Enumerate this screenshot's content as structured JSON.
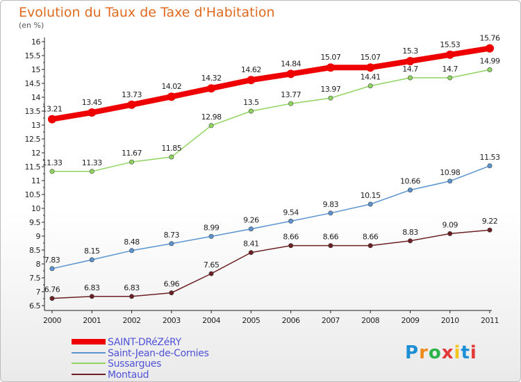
{
  "title": "Evolution du Taux de Taxe d'Habitation",
  "subtitle": "(en %)",
  "logo": {
    "text": "Proxiti",
    "letters": [
      "P",
      "r",
      "o",
      "x",
      "i",
      "t",
      "i"
    ],
    "colors": [
      "#1e8fd6",
      "#f08a1c",
      "#2bb34a",
      "#e23a3a",
      "#f3c51b",
      "#1e8fd6",
      "#e23a3a"
    ]
  },
  "chart_data": {
    "type": "line",
    "x": [
      "2000",
      "2001",
      "2002",
      "2003",
      "2004",
      "2005",
      "2006",
      "2007",
      "2008",
      "2009",
      "2010",
      "2011"
    ],
    "ylim": [
      6.5,
      16
    ],
    "yticks": [
      "6.5",
      "7",
      "7.5",
      "8",
      "8.5",
      "9",
      "9.5",
      "10",
      "10.5",
      "11",
      "11.5",
      "12",
      "12.5",
      "13",
      "13.5",
      "14",
      "14.5",
      "15",
      "15.5",
      "16"
    ],
    "grid": false,
    "legend_position": "bottom-left",
    "series": [
      {
        "name": "SAINT-DRéZéRY",
        "color": "#ee0000",
        "values": [
          13.21,
          13.45,
          13.73,
          14.02,
          14.32,
          14.62,
          14.84,
          15.07,
          15.07,
          15.3,
          15.53,
          15.76
        ],
        "labels": [
          "13.21",
          "13.45",
          "13.73",
          "14.02",
          "14.32",
          "14.62",
          "14.84",
          "15.07",
          "15.07",
          "15.3",
          "15.53",
          "15.76"
        ]
      },
      {
        "name": "Saint-Jean-de-Cornies",
        "color": "#5a93cf",
        "values": [
          7.83,
          8.15,
          8.48,
          8.73,
          8.99,
          9.26,
          9.54,
          9.83,
          10.15,
          10.66,
          10.98,
          11.53
        ],
        "labels": [
          "7.83",
          "8.15",
          "8.48",
          "8.73",
          "8.99",
          "9.26",
          "9.54",
          "9.83",
          "10.15",
          "10.66",
          "10.98",
          "11.53"
        ]
      },
      {
        "name": "Sussargues",
        "color": "#8fd45e",
        "values": [
          11.33,
          11.33,
          11.67,
          11.85,
          12.98,
          13.5,
          13.77,
          13.97,
          14.41,
          14.7,
          14.7,
          14.99
        ],
        "labels": [
          "11.33",
          "11.33",
          "11.67",
          "11.85",
          "12.98",
          "13.5",
          "13.77",
          "13.97",
          "14.41",
          "14.7",
          "14.7",
          "14.99"
        ]
      },
      {
        "name": "Montaud",
        "color": "#6b1f22",
        "values": [
          6.76,
          6.83,
          6.83,
          6.96,
          7.65,
          8.41,
          8.66,
          8.66,
          8.66,
          8.83,
          9.09,
          9.22
        ],
        "labels": [
          "6.76",
          "6.83",
          "6.83",
          "6.96",
          "7.65",
          "8.41",
          "8.66",
          "8.66",
          "8.66",
          "8.83",
          "9.09",
          "9.22"
        ]
      }
    ]
  }
}
